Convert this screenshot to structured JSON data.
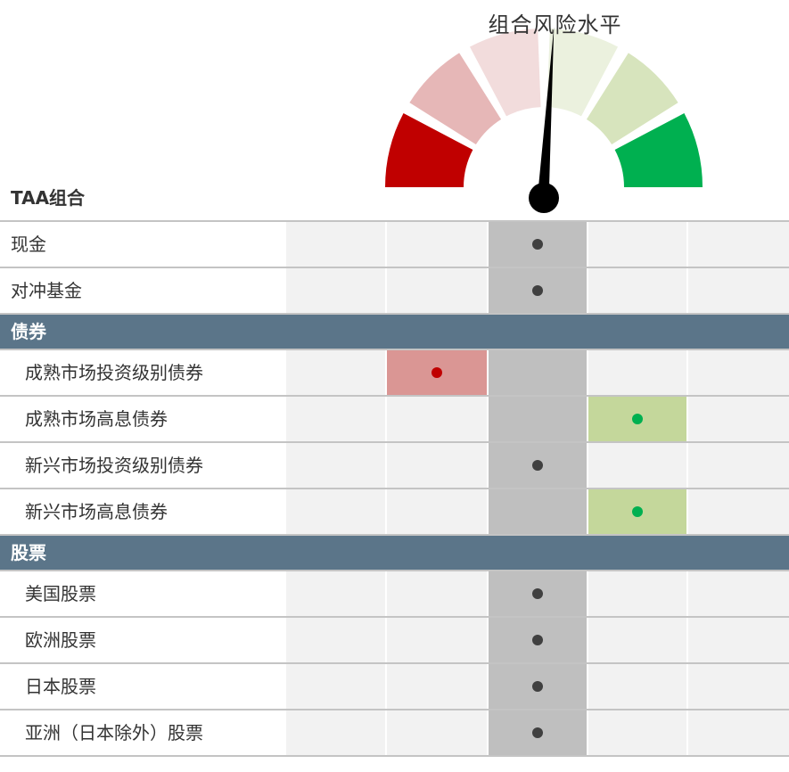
{
  "gauge": {
    "title": "组合风险水平",
    "value_fraction": 0.52,
    "segment_colors": [
      "#c00000",
      "#e6b7b7",
      "#f2dcdc",
      "#ebf1de",
      "#d7e4bd",
      "#00b050"
    ]
  },
  "portfolio_label": "TAA组合",
  "scale_levels": 5,
  "colors": {
    "neutral_fill": "#bfbfbf",
    "neutral_dot": "#404040",
    "under_fill": "#da9694",
    "under_dot": "#c00000",
    "over_fill": "#c4d79b",
    "over_dot": "#00b050",
    "section_bg": "#5b7589"
  },
  "rows": [
    {
      "label": "现金",
      "type": "item",
      "indent": false,
      "level": 3
    },
    {
      "label": "对冲基金",
      "type": "item",
      "indent": false,
      "level": 3
    },
    {
      "label": "债券",
      "type": "section"
    },
    {
      "label": "成熟市场投资级别债券",
      "type": "item",
      "indent": true,
      "level": 2
    },
    {
      "label": "成熟市场高息债券",
      "type": "item",
      "indent": true,
      "level": 4
    },
    {
      "label": "新兴市场投资级别债券",
      "type": "item",
      "indent": true,
      "level": 3
    },
    {
      "label": "新兴市场高息债券",
      "type": "item",
      "indent": true,
      "level": 4
    },
    {
      "label": "股票",
      "type": "section"
    },
    {
      "label": "美国股票",
      "type": "item",
      "indent": true,
      "level": 3
    },
    {
      "label": "欧洲股票",
      "type": "item",
      "indent": true,
      "level": 3
    },
    {
      "label": "日本股票",
      "type": "item",
      "indent": true,
      "level": 3
    },
    {
      "label": "亚洲（日本除外）股票",
      "type": "item",
      "indent": true,
      "level": 3
    }
  ],
  "chart_data": {
    "type": "table",
    "title": "组合风险水平",
    "scale": [
      1,
      2,
      3,
      4,
      5
    ],
    "categories": [
      "现金",
      "对冲基金",
      "成熟市场投资级别债券",
      "成熟市场高息债券",
      "新兴市场投资级别债券",
      "新兴市场高息债券",
      "美国股票",
      "欧洲股票",
      "日本股票",
      "亚洲（日本除外）股票"
    ],
    "values": [
      3,
      3,
      2,
      4,
      3,
      4,
      3,
      3,
      3,
      3
    ],
    "groups": [
      {
        "name": "债券",
        "members": [
          "成熟市场投资级别债券",
          "成熟市场高息债券",
          "新兴市场投资级别债券",
          "新兴市场高息债券"
        ]
      },
      {
        "name": "股票",
        "members": [
          "美国股票",
          "欧洲股票",
          "日本股票",
          "亚洲（日本除外）股票"
        ]
      }
    ],
    "gauge_value_fraction": 0.52
  }
}
